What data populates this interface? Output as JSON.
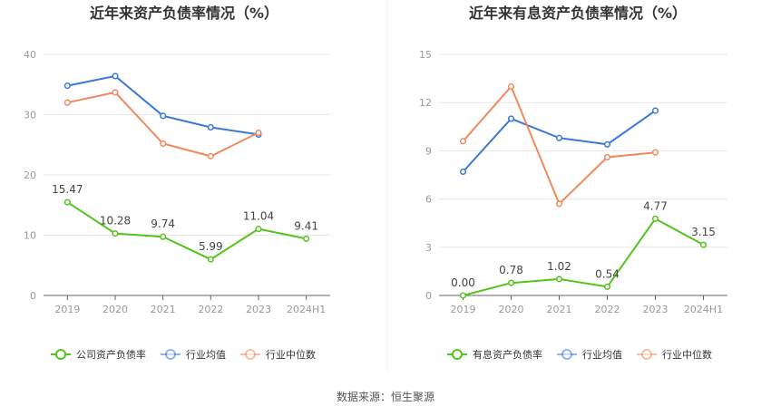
{
  "chart_data": [
    {
      "type": "line",
      "title": "近年来资产负债率情况（%）",
      "categories": [
        "2019",
        "2020",
        "2021",
        "2022",
        "2023",
        "2024H1"
      ],
      "ylim": [
        0,
        40
      ],
      "yticks": [
        "0",
        "10",
        "20",
        "30",
        "40"
      ],
      "grid": true,
      "legend_position": "bottom",
      "series": [
        {
          "name": "公司资产负债率",
          "color": "#52c41a",
          "values": [
            15.47,
            10.28,
            9.74,
            5.99,
            11.04,
            9.41
          ],
          "labels": [
            "15.47",
            "10.28",
            "9.74",
            "5.99",
            "11.04",
            "9.41"
          ]
        },
        {
          "name": "行业均值",
          "color": "#3a78d8",
          "values": [
            34.8,
            36.4,
            29.8,
            27.9,
            26.7,
            null
          ]
        },
        {
          "name": "行业中位数",
          "color": "#f08a5d",
          "values": [
            32.0,
            33.7,
            25.2,
            23.1,
            27.0,
            null
          ]
        }
      ]
    },
    {
      "type": "line",
      "title": "近年来有息资产负债率情况（%）",
      "categories": [
        "2019",
        "2020",
        "2021",
        "2022",
        "2023",
        "2024H1"
      ],
      "ylim": [
        0,
        15
      ],
      "yticks": [
        "0",
        "3",
        "6",
        "9",
        "12",
        "15"
      ],
      "grid": true,
      "legend_position": "bottom",
      "series": [
        {
          "name": "有息资产负债率",
          "color": "#52c41a",
          "values": [
            0.0,
            0.78,
            1.02,
            0.54,
            4.77,
            3.15
          ],
          "labels": [
            "0.00",
            "0.78",
            "1.02",
            "0.54",
            "4.77",
            "3.15"
          ]
        },
        {
          "name": "行业均值",
          "color": "#3a78d8",
          "values": [
            7.7,
            11.0,
            9.8,
            9.4,
            11.5,
            null
          ]
        },
        {
          "name": "行业中位数",
          "color": "#f08a5d",
          "values": [
            9.6,
            13.0,
            5.7,
            8.6,
            8.9,
            null
          ]
        }
      ]
    }
  ],
  "footer": {
    "source": "数据来源：恒生聚源"
  }
}
